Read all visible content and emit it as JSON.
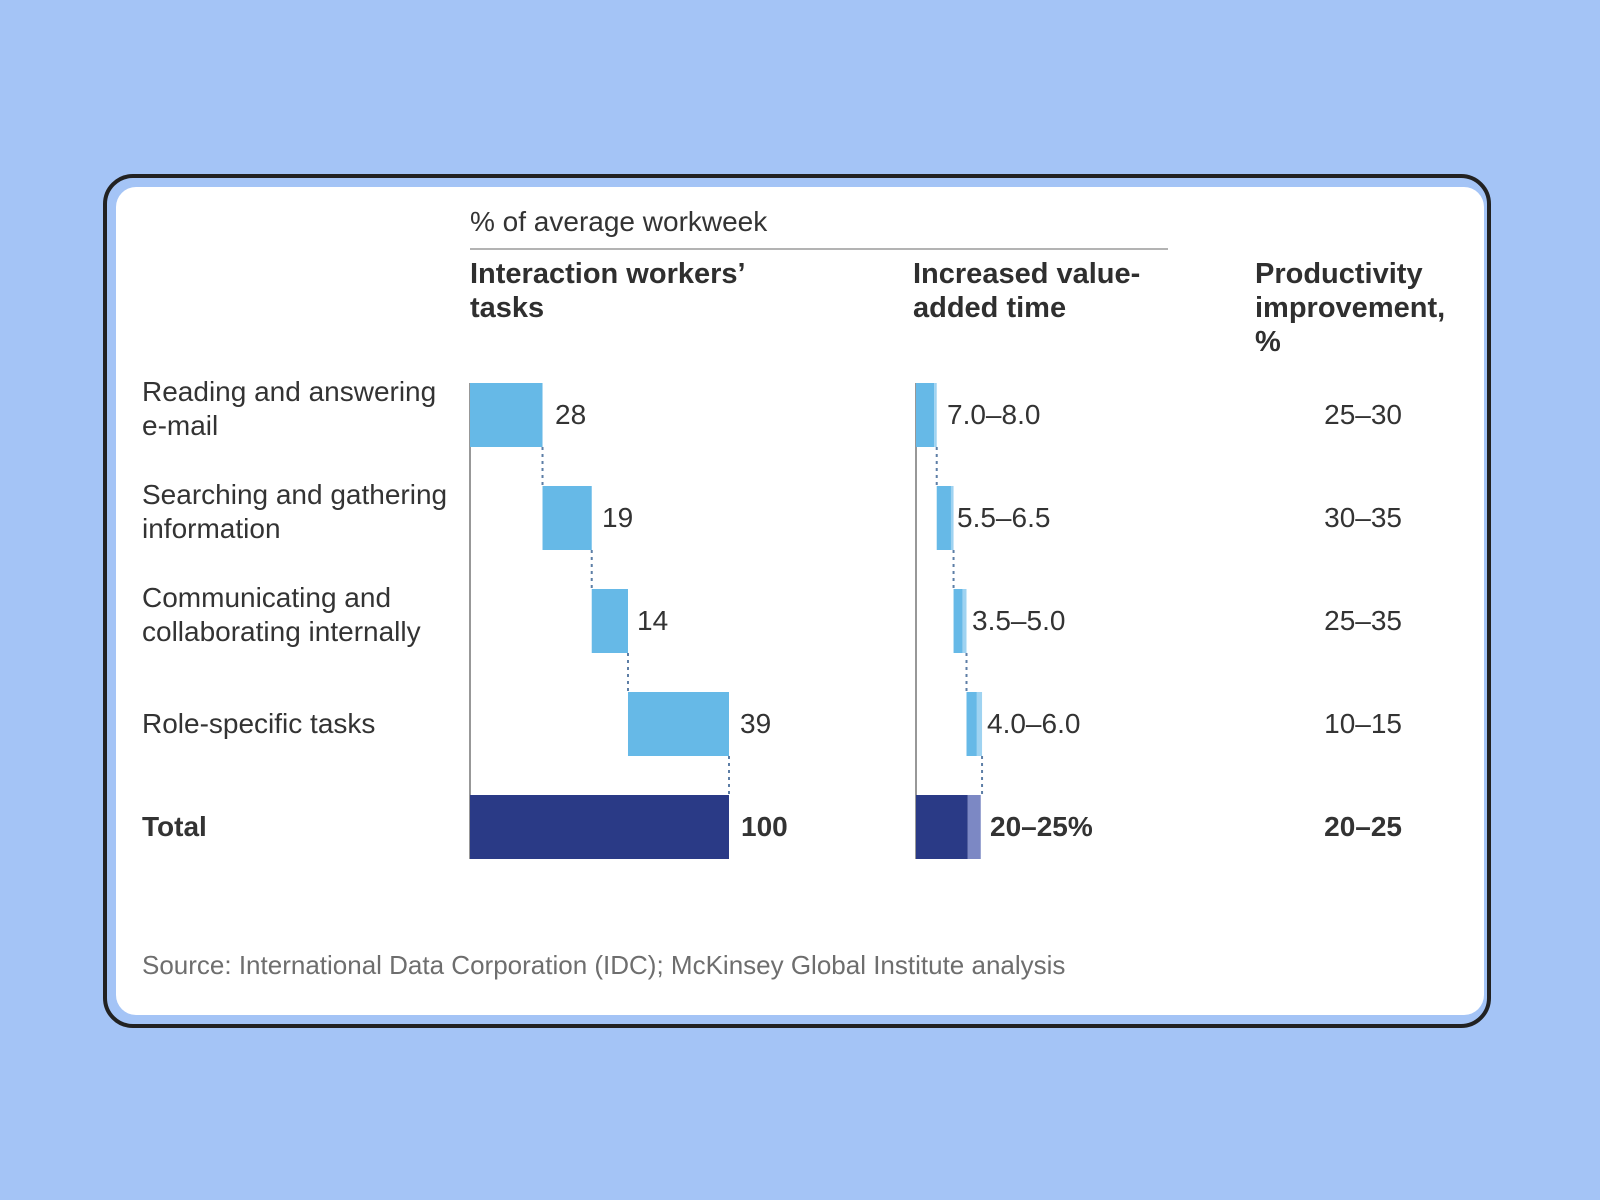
{
  "colors": {
    "background": "#a4c4f6",
    "bar_light": "#66b9e7",
    "bar_lighter": "#9fd3f1",
    "bar_total": "#2a3a86",
    "bar_total_light": "#7c88c4",
    "connector": "#5d7ea6"
  },
  "chart_data": {
    "type": "bar",
    "super_header": "% of average workweek",
    "columns": {
      "tasks": "Interaction workers’ tasks",
      "value_added": "Increased value-added time",
      "productivity": "Productivity improvement, %"
    },
    "rows": [
      {
        "label": "Reading and answering e-mail",
        "tasks_value": 28,
        "tasks_label": "28",
        "value_added_range": [
          7.0,
          8.0
        ],
        "value_added_label": "7.0–8.0",
        "productivity_label": "25–30"
      },
      {
        "label": "Searching and gathering information",
        "tasks_value": 19,
        "tasks_label": "19",
        "value_added_range": [
          5.5,
          6.5
        ],
        "value_added_label": "5.5–6.5",
        "productivity_label": "30–35"
      },
      {
        "label": "Communicating and collaborating internally",
        "tasks_value": 14,
        "tasks_label": "14",
        "value_added_range": [
          3.5,
          5.0
        ],
        "value_added_label": "3.5–5.0",
        "productivity_label": "25–35"
      },
      {
        "label": "Role-specific tasks",
        "tasks_value": 39,
        "tasks_label": "39",
        "value_added_range": [
          4.0,
          6.0
        ],
        "value_added_label": "4.0–6.0",
        "productivity_label": "10–15"
      }
    ],
    "total": {
      "label": "Total",
      "tasks_value": 100,
      "tasks_label": "100",
      "value_added_range": [
        20,
        25
      ],
      "value_added_label": "20–25%",
      "productivity_label": "20–25"
    },
    "source": "Source: International Data Corporation (IDC); McKinsey Global Institute analysis"
  }
}
